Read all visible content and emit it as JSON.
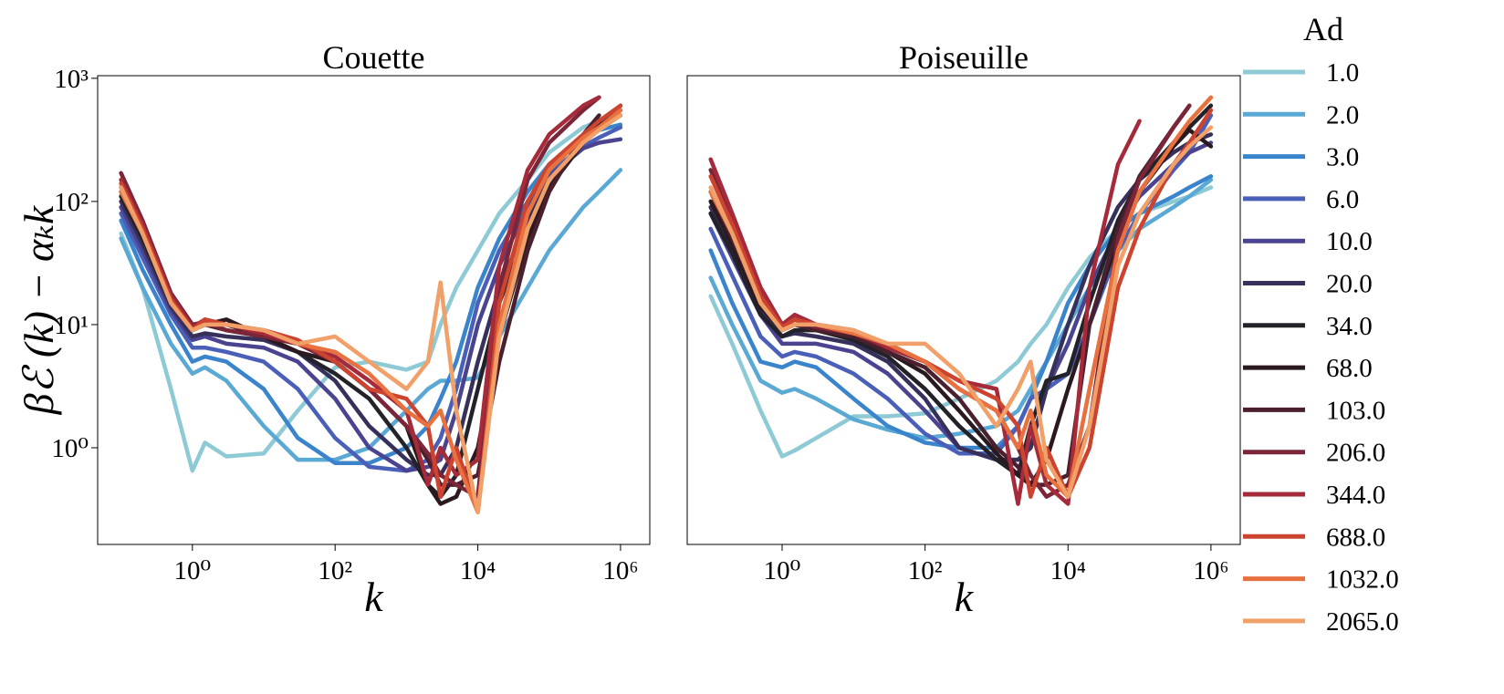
{
  "legend_title": "Ad",
  "chart_data": [
    {
      "type": "line",
      "title": "Couette",
      "xlabel": "k",
      "ylabel": "βℰ (k) − αₖk",
      "xscale": "log",
      "yscale": "log",
      "xlim": [
        0.047,
        2570000
      ],
      "ylim": [
        0.164,
        1050
      ],
      "xticks": [
        {
          "value": 1,
          "label": "10⁰"
        },
        {
          "value": 100,
          "label": "10²"
        },
        {
          "value": 10000,
          "label": "10⁴"
        },
        {
          "value": 1000000,
          "label": "10⁶"
        }
      ],
      "yticks": [
        {
          "value": 1,
          "label": "10⁰"
        },
        {
          "value": 10,
          "label": "10¹"
        },
        {
          "value": 100,
          "label": "10²"
        },
        {
          "value": 1000,
          "label": "10³"
        }
      ],
      "x": [
        0.1,
        0.2,
        0.5,
        1,
        1.5,
        3,
        10,
        30,
        100,
        300,
        1000,
        2000,
        3000,
        5000,
        10000,
        20000,
        50000,
        100000,
        300000,
        500000,
        1000000
      ],
      "series": [
        {
          "name": "1.0",
          "color": "#8ecad6",
          "values": [
            55,
            20,
            3,
            0.65,
            1.1,
            0.85,
            0.9,
            2,
            4.5,
            5,
            4.3,
            5,
            10,
            20,
            40,
            80,
            150,
            250,
            400,
            450,
            500
          ]
        },
        {
          "name": "2.0",
          "color": "#5aa8d4",
          "values": [
            50,
            20,
            7,
            4,
            4.5,
            3.5,
            1.5,
            0.8,
            0.8,
            1,
            2,
            3,
            3.5,
            3.5,
            3.7,
            8,
            20,
            40,
            90,
            120,
            180
          ]
        },
        {
          "name": "3.0",
          "color": "#3a84cc",
          "values": [
            70,
            28,
            10,
            5,
            5.5,
            5,
            3,
            1.2,
            0.75,
            0.75,
            1,
            1.5,
            2.5,
            5,
            20,
            50,
            120,
            200,
            330,
            380,
            420
          ]
        },
        {
          "name": "6.0",
          "color": "#4a5fb8",
          "values": [
            80,
            35,
            12,
            6.5,
            6.5,
            6,
            5,
            3,
            1.2,
            0.7,
            0.65,
            0.8,
            1.2,
            3,
            15,
            40,
            100,
            170,
            280,
            330,
            400
          ]
        },
        {
          "name": "10.0",
          "color": "#4a4490",
          "values": [
            90,
            40,
            13,
            7.5,
            8,
            7,
            6.5,
            5,
            2.5,
            1,
            0.65,
            0.7,
            0.8,
            2,
            10,
            30,
            90,
            160,
            270,
            300,
            320
          ]
        },
        {
          "name": "20.0",
          "color": "#36305a",
          "values": [
            100,
            45,
            14,
            8,
            8.5,
            8,
            7.5,
            6,
            3.5,
            1.5,
            0.8,
            0.6,
            0.6,
            1,
            5,
            20,
            70,
            150,
            300,
            400,
            600
          ]
        },
        {
          "name": "34.0",
          "color": "#222228",
          "values": [
            110,
            50,
            15,
            9,
            10,
            10,
            8,
            6,
            4,
            2.5,
            1,
            0.5,
            0.4,
            0.6,
            3,
            15,
            60,
            130,
            300,
            400,
            550
          ]
        },
        {
          "name": "68.0",
          "color": "#2a1a1f",
          "values": [
            120,
            55,
            15,
            9,
            10,
            11,
            8,
            6,
            5,
            3,
            1.5,
            0.5,
            0.35,
            0.4,
            1,
            8,
            50,
            130,
            300,
            420,
            500
          ]
        },
        {
          "name": "103.0",
          "color": "#4a1f2e",
          "values": [
            130,
            60,
            16,
            9,
            10,
            9,
            8,
            7,
            5,
            3,
            1.5,
            0.8,
            0.5,
            0.5,
            0.6,
            5,
            40,
            120,
            350,
            500,
            null
          ]
        },
        {
          "name": "206.0",
          "color": "#7a2538",
          "values": [
            170,
            70,
            18,
            10,
            10.5,
            9,
            8,
            7,
            5,
            3,
            1.5,
            0.9,
            0.6,
            0.5,
            0.4,
            20,
            150,
            300,
            550,
            700,
            null
          ]
        },
        {
          "name": "344.0",
          "color": "#a52a3a",
          "values": [
            150,
            65,
            17,
            9.5,
            11,
            10,
            8.5,
            7,
            5.5,
            3.5,
            2,
            0.5,
            1,
            0.6,
            0.8,
            30,
            180,
            350,
            600,
            700,
            null
          ]
        },
        {
          "name": "688.0",
          "color": "#cc4430",
          "values": [
            140,
            60,
            16,
            9,
            11,
            10,
            9,
            7.5,
            5,
            3,
            2.5,
            1.5,
            0.4,
            1,
            0.3,
            15,
            100,
            200,
            350,
            450,
            600
          ]
        },
        {
          "name": "1032.0",
          "color": "#e8713f",
          "values": [
            120,
            55,
            15,
            9,
            10,
            10,
            9,
            7,
            6,
            4,
            2,
            1.5,
            2,
            0.8,
            0.3,
            10,
            80,
            180,
            330,
            400,
            550
          ]
        },
        {
          "name": "2065.0",
          "color": "#f0a068",
          "values": [
            130,
            55,
            15,
            9,
            10,
            10,
            9,
            7,
            8,
            5,
            3,
            5,
            22,
            2,
            0.3,
            8,
            60,
            150,
            300,
            380,
            500
          ]
        }
      ]
    },
    {
      "type": "line",
      "title": "Poiseuille",
      "xlabel": "k",
      "xscale": "log",
      "yscale": "log",
      "xlim": [
        0.047,
        2570000
      ],
      "ylim": [
        0.164,
        1050
      ],
      "xticks": [
        {
          "value": 1,
          "label": "10⁰"
        },
        {
          "value": 100,
          "label": "10²"
        },
        {
          "value": 10000,
          "label": "10⁴"
        },
        {
          "value": 1000000,
          "label": "10⁶"
        }
      ],
      "x": [
        0.1,
        0.2,
        0.5,
        1,
        1.5,
        3,
        10,
        30,
        100,
        300,
        1000,
        2000,
        3000,
        5000,
        10000,
        20000,
        50000,
        100000,
        300000,
        500000,
        1000000
      ],
      "series": [
        {
          "name": "1.0",
          "color": "#8ecad6",
          "values": [
            17,
            7,
            2,
            0.85,
            0.95,
            1.2,
            1.8,
            1.8,
            1.9,
            2.5,
            3.5,
            5,
            7,
            10,
            20,
            35,
            60,
            80,
            100,
            110,
            130
          ]
        },
        {
          "name": "2.0",
          "color": "#5aa8d4",
          "values": [
            24,
            10,
            3.5,
            2.8,
            3,
            2.5,
            1.7,
            1.4,
            1.2,
            1.3,
            1.5,
            2,
            3,
            5,
            10,
            20,
            40,
            60,
            90,
            110,
            150
          ]
        },
        {
          "name": "3.0",
          "color": "#3a84cc",
          "values": [
            40,
            15,
            5,
            4.5,
            5,
            4.5,
            2.5,
            1.5,
            1.1,
            1,
            1,
            1.5,
            2.5,
            5,
            15,
            30,
            60,
            80,
            110,
            130,
            160
          ]
        },
        {
          "name": "6.0",
          "color": "#4a5fb8",
          "values": [
            60,
            25,
            8,
            5.5,
            6,
            5.5,
            4,
            2.5,
            1.3,
            0.9,
            0.9,
            1.5,
            2.5,
            3,
            4,
            10,
            40,
            80,
            180,
            250,
            500
          ]
        },
        {
          "name": "10.0",
          "color": "#4a4490",
          "values": [
            80,
            35,
            12,
            7,
            7,
            7,
            6,
            4,
            2,
            1,
            0.8,
            0.8,
            1,
            3,
            7,
            20,
            60,
            110,
            200,
            250,
            300
          ]
        },
        {
          "name": "20.0",
          "color": "#36305a",
          "values": [
            90,
            40,
            13,
            8,
            8.5,
            8,
            7,
            5,
            2.5,
            1,
            0.8,
            0.8,
            1,
            3,
            10,
            30,
            90,
            150,
            250,
            300,
            350
          ]
        },
        {
          "name": "34.0",
          "color": "#222228",
          "values": [
            80,
            38,
            12,
            8,
            9,
            9,
            7.5,
            5.5,
            3,
            1.5,
            0.8,
            0.6,
            1.5,
            3.5,
            4,
            15,
            70,
            150,
            300,
            400,
            600
          ]
        },
        {
          "name": "68.0",
          "color": "#2a1a1f",
          "values": [
            100,
            45,
            14,
            9,
            10,
            9,
            8,
            6,
            4,
            2,
            0.9,
            0.6,
            0.5,
            0.8,
            3,
            10,
            50,
            120,
            280,
            380,
            280
          ]
        },
        {
          "name": "103.0",
          "color": "#4a1f2e",
          "values": [
            120,
            50,
            15,
            9,
            10,
            9,
            8,
            6,
            4.5,
            2.5,
            1,
            0.7,
            0.5,
            0.5,
            0.6,
            10,
            60,
            160,
            400,
            600,
            null
          ]
        },
        {
          "name": "206.0",
          "color": "#7a2538",
          "values": [
            180,
            70,
            18,
            10,
            11,
            9.5,
            8.5,
            6.5,
            5,
            3,
            2,
            1,
            0.6,
            0.4,
            0.5,
            1.5,
            50,
            150,
            400,
            600,
            null
          ]
        },
        {
          "name": "344.0",
          "color": "#a52a3a",
          "values": [
            220,
            80,
            20,
            10,
            12,
            10,
            9,
            6.5,
            5,
            3.5,
            3,
            0.35,
            1.5,
            0.5,
            0.35,
            20,
            200,
            450,
            null,
            null,
            null
          ]
        },
        {
          "name": "688.0",
          "color": "#cc4430",
          "values": [
            160,
            65,
            17,
            9.5,
            11,
            10,
            8.5,
            7,
            5,
            3.5,
            2.5,
            1.5,
            0.4,
            1,
            0.4,
            1,
            20,
            60,
            200,
            300,
            550
          ]
        },
        {
          "name": "1032.0",
          "color": "#e8713f",
          "values": [
            120,
            55,
            15,
            9,
            10,
            10,
            8.5,
            7,
            5,
            3,
            2,
            1,
            2,
            0.6,
            0.4,
            3,
            40,
            120,
            300,
            450,
            700
          ]
        },
        {
          "name": "2065.0",
          "color": "#f0a068",
          "values": [
            130,
            55,
            15,
            9,
            10,
            10,
            9,
            7,
            7,
            4,
            1.5,
            3,
            5,
            0.8,
            0.4,
            1.5,
            30,
            80,
            200,
            280,
            400
          ]
        }
      ]
    }
  ]
}
